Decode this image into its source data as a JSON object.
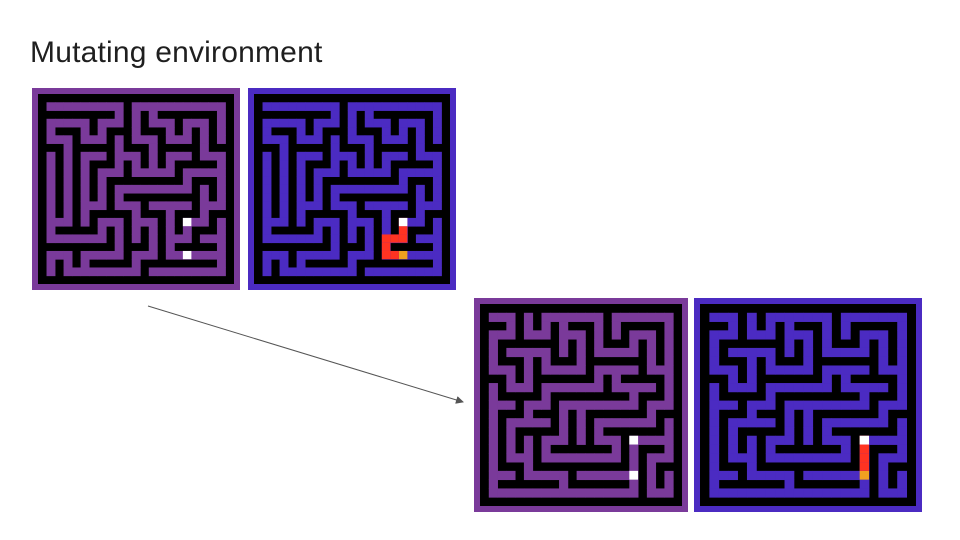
{
  "title": "Mutating environment",
  "colors": {
    "maze_purple": "#7a3a9a",
    "maze_blue": "#4b2bc2",
    "wall": "#000000",
    "marker": "#ffffff",
    "path": "#ff3322",
    "path_end": "#f0a020",
    "arrow": "#555555"
  },
  "panels": [
    {
      "name": "original-maze",
      "theme": "maze_purple",
      "seed": 11,
      "path": false
    },
    {
      "name": "original-maze-solution",
      "theme": "maze_blue",
      "seed": 11,
      "path": true
    },
    {
      "name": "mutated-maze",
      "theme": "maze_purple",
      "seed": 29,
      "path": false
    },
    {
      "name": "mutated-maze-solution",
      "theme": "maze_blue",
      "seed": 29,
      "path": true
    }
  ]
}
